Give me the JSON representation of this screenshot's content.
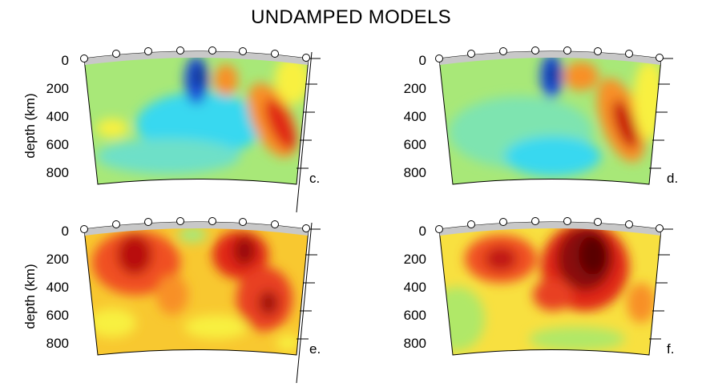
{
  "title": "UNDAMPED MODELS",
  "y_axis_label": "depth (km)",
  "depth_ticks": [
    "0",
    "200",
    "400",
    "600",
    "800"
  ],
  "panels": [
    {
      "id": "c",
      "label": "c.",
      "palette": "cool"
    },
    {
      "id": "d",
      "label": "d.",
      "palette": "cool"
    },
    {
      "id": "e",
      "label": "e.",
      "palette": "hot"
    },
    {
      "id": "f",
      "label": "f.",
      "palette": "hot"
    }
  ],
  "colors": {
    "surface_band": "#c8c8c8",
    "station_fill": "#ffffff",
    "blue": "#1e50d8",
    "cyan": "#38d8f0",
    "green": "#a8e878",
    "yellow": "#f8f040",
    "orange": "#f89028",
    "red": "#e02818",
    "dark_red": "#8a0a0a"
  }
}
